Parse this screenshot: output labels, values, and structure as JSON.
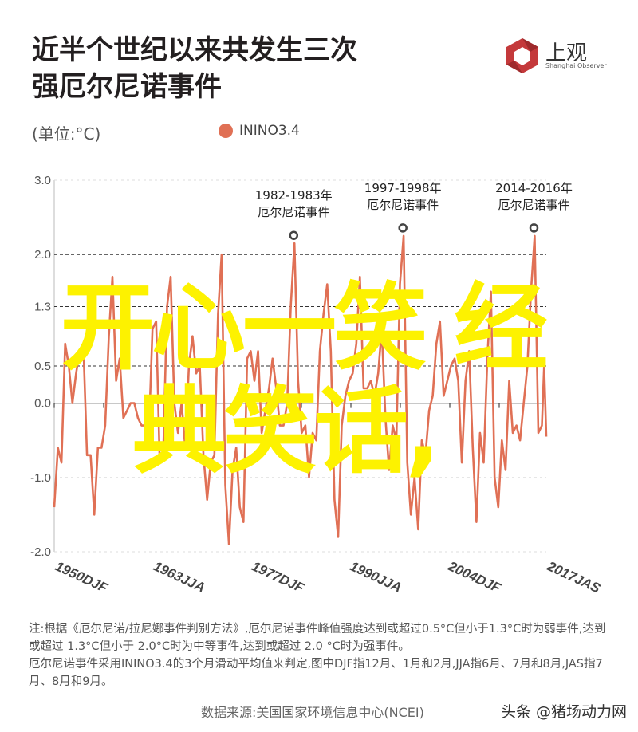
{
  "header": {
    "title_line1": "近半个世纪以来共发生三次",
    "title_line2": "强厄尔尼诺事件",
    "unit": "(单位:°C)"
  },
  "logo": {
    "name": "上观",
    "subtitle": "Shanghai Observer",
    "color": "#c4393b"
  },
  "chart_data": {
    "type": "line",
    "title": "近半个世纪以来共发生三次强厄尔尼诺事件",
    "ylabel": "(单位:°C)",
    "xlabel": "",
    "ylim": [
      -2.0,
      3.0
    ],
    "xlim": [
      1950.0,
      2017.6
    ],
    "yticks": [
      "3.0",
      "2.0",
      "1.3",
      "0.5",
      "0.0",
      "-1.0",
      "-2.0"
    ],
    "ytick_values": [
      3.0,
      2.0,
      1.3,
      0.5,
      0.0,
      -1.0,
      -2.0
    ],
    "threshold_lines": [
      2.0,
      1.3,
      0.5
    ],
    "xtick_labels": [
      "1950DJF",
      "1963JJA",
      "1977DJF",
      "1990JJA",
      "2004DJF",
      "2017JAS"
    ],
    "xtick_values": [
      1950.0,
      1963.5,
      1977.0,
      1990.5,
      2004.0,
      2017.6
    ],
    "legend": "top-center",
    "series": [
      {
        "name": "ININO3.4",
        "color": "#e07055",
        "x": [
          1950,
          1950.5,
          1951,
          1951.5,
          1952,
          1952.5,
          1953,
          1953.5,
          1954,
          1954.5,
          1955,
          1955.5,
          1956,
          1956.5,
          1957,
          1957.5,
          1958,
          1958.5,
          1959,
          1959.5,
          1960,
          1960.5,
          1961,
          1961.5,
          1962,
          1962.5,
          1963,
          1963.5,
          1964,
          1964.5,
          1965,
          1965.5,
          1966,
          1966.5,
          1967,
          1967.5,
          1968,
          1968.5,
          1969,
          1969.5,
          1970,
          1970.5,
          1971,
          1971.5,
          1972,
          1972.5,
          1973,
          1973.5,
          1974,
          1974.5,
          1975,
          1975.5,
          1976,
          1976.5,
          1977,
          1977.5,
          1978,
          1978.5,
          1979,
          1979.5,
          1980,
          1980.5,
          1981,
          1981.5,
          1982,
          1982.5,
          1983,
          1983.5,
          1984,
          1984.5,
          1985,
          1985.5,
          1986,
          1986.5,
          1987,
          1987.5,
          1988,
          1988.5,
          1989,
          1989.5,
          1990,
          1990.5,
          1991,
          1991.5,
          1992,
          1992.5,
          1993,
          1993.5,
          1994,
          1994.5,
          1995,
          1995.5,
          1996,
          1996.5,
          1997,
          1997.5,
          1998,
          1998.5,
          1999,
          1999.5,
          2000,
          2000.5,
          2001,
          2001.5,
          2002,
          2002.5,
          2003,
          2003.5,
          2004,
          2004.5,
          2005,
          2005.5,
          2006,
          2006.5,
          2007,
          2007.5,
          2008,
          2008.5,
          2009,
          2009.5,
          2010,
          2010.5,
          2011,
          2011.5,
          2012,
          2012.5,
          2013,
          2013.5,
          2014,
          2014.5,
          2015,
          2015.5,
          2016,
          2016.5,
          2017,
          2017.3,
          2017.6
        ],
        "values": [
          -1.4,
          -0.6,
          -0.8,
          0.8,
          0.5,
          0.0,
          0.4,
          0.7,
          0.8,
          -0.7,
          -0.7,
          -1.5,
          -0.6,
          -0.6,
          -0.3,
          0.9,
          1.7,
          0.3,
          0.6,
          -0.2,
          -0.1,
          0.0,
          0.0,
          -0.2,
          -0.3,
          -0.3,
          -0.4,
          1.0,
          1.1,
          -0.8,
          -0.6,
          1.3,
          1.7,
          0.0,
          -0.4,
          0.0,
          -0.6,
          0.5,
          0.9,
          0.4,
          0.5,
          -0.7,
          -1.3,
          -0.8,
          -0.7,
          1.2,
          2.0,
          -1.1,
          -1.9,
          -0.9,
          -0.6,
          -1.4,
          -1.6,
          0.6,
          0.7,
          0.3,
          0.7,
          -0.4,
          -0.1,
          0.2,
          0.6,
          0.2,
          -0.3,
          -0.3,
          0.0,
          1.3,
          2.15,
          0.3,
          -0.4,
          -0.3,
          -1.0,
          -0.4,
          -0.5,
          0.7,
          1.2,
          1.6,
          0.7,
          -1.3,
          -1.8,
          -0.3,
          0.1,
          0.3,
          0.4,
          0.8,
          1.7,
          0.2,
          0.2,
          0.3,
          0.1,
          0.4,
          1.0,
          -0.2,
          -0.9,
          -0.3,
          -0.5,
          1.6,
          2.25,
          -0.8,
          -1.5,
          -1.0,
          -1.7,
          -0.5,
          -0.7,
          -0.1,
          0.1,
          0.8,
          1.1,
          0.1,
          0.3,
          0.5,
          0.6,
          0.3,
          -0.8,
          0.3,
          0.7,
          -0.6,
          -1.6,
          -0.4,
          -0.8,
          0.6,
          1.5,
          -1.0,
          -1.4,
          -0.5,
          -0.9,
          0.3,
          -0.4,
          -0.3,
          -0.5,
          0.0,
          0.5,
          1.5,
          2.25,
          -0.4,
          -0.3,
          0.5,
          -0.45
        ]
      }
    ],
    "annotations": [
      {
        "x": 1982.9,
        "y": 2.15,
        "line1": "1982-1983年",
        "line2": "厄尔尼诺事件"
      },
      {
        "x": 1997.9,
        "y": 2.25,
        "line1": "1997-1998年",
        "line2": "厄尔尼诺事件"
      },
      {
        "x": 2015.9,
        "y": 2.25,
        "line1": "2014-2016年",
        "line2": "厄尔尼诺事件"
      }
    ]
  },
  "footnote": {
    "line1": "注:根据《厄尔尼诺/拉尼娜事件判别方法》,厄尔尼诺事件峰值强度达到或超过0.5°C但小于1.3°C时为弱事件,达到或超过 1.3°C但小于 2.0°C时为中等事件,达到或超过 2.0 °C时为强事件。",
    "line2": "厄尔尼诺事件采用ININO3.4的3个月滑动平均值来判定,图中DJF指12月、1月和2月,JJA指6月、7月和8月,JAS指7月、8月和9月。"
  },
  "source": "数据来源:美国国家环境信息中心(NCEI)",
  "credit": "头条 @猪场动力网",
  "watermark": {
    "line1": "开心一笑 经",
    "line2": "典笑话,"
  }
}
